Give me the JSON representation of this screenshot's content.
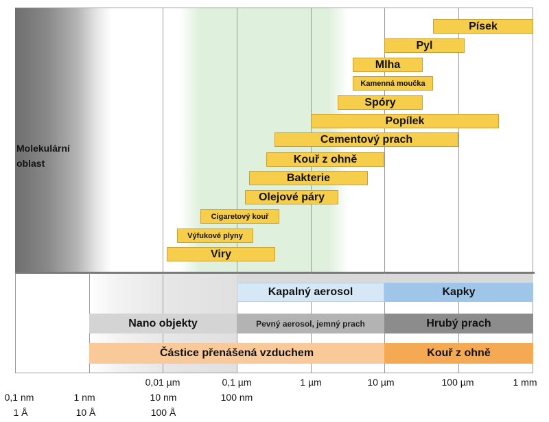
{
  "molecular_region": {
    "line1": "Molekulární",
    "line2": "oblast"
  },
  "particles": [
    {
      "id": "pisek",
      "label": "Písek"
    },
    {
      "id": "pyl",
      "label": "Pyl"
    },
    {
      "id": "mlha",
      "label": "Mlha"
    },
    {
      "id": "kamenna-moucka",
      "label": "Kamenná moučka"
    },
    {
      "id": "spory",
      "label": "Spóry"
    },
    {
      "id": "popilek",
      "label": "Popílek"
    },
    {
      "id": "cementovy-prach",
      "label": "Cementový prach"
    },
    {
      "id": "kour-z-ohne",
      "label": "Kouř z ohně"
    },
    {
      "id": "bakterie",
      "label": "Bakterie"
    },
    {
      "id": "olejove-pary",
      "label": "Olejové páry"
    },
    {
      "id": "cigaretovy-kour",
      "label": "Cigaretový kouř"
    },
    {
      "id": "vyfukove-plyny",
      "label": "Výfukové plyny"
    },
    {
      "id": "viry",
      "label": "Viry"
    }
  ],
  "categories": {
    "kapalny_aerosol": "Kapalný aerosol",
    "kapky": "Kapky",
    "nano_objekty": "Nano objekty",
    "pevny_aerosol": "Pevný aerosol, jemný prach",
    "hruby_prach": "Hrubý prach",
    "castice_vzduchem": "Částice přenášená vzduchem",
    "kour_z_ohne": "Kouř z ohně"
  },
  "axis": {
    "um_labels": [
      "0,01 µm",
      "0,1 µm",
      "1 µm",
      "10 µm",
      "100 µm",
      "1 mm"
    ],
    "nm_labels": [
      "0,1 nm",
      "1 nm",
      "10 nm",
      "100 nm"
    ],
    "angstrom_labels": [
      "1 Å",
      "10 Å",
      "100 Å"
    ]
  },
  "colors": {
    "bar_fill": "#f7cd4c",
    "liquid_aerosol": "#d6e8f5",
    "drops": "#9fc5e8",
    "nano": "#d9d9d9",
    "solid_aerosol": "#b3b3b3",
    "coarse_dust": "#8c8c8c",
    "airborne": "#f9c99a",
    "fire_smoke": "#f5a952",
    "green_zone": "#dff0dc"
  }
}
